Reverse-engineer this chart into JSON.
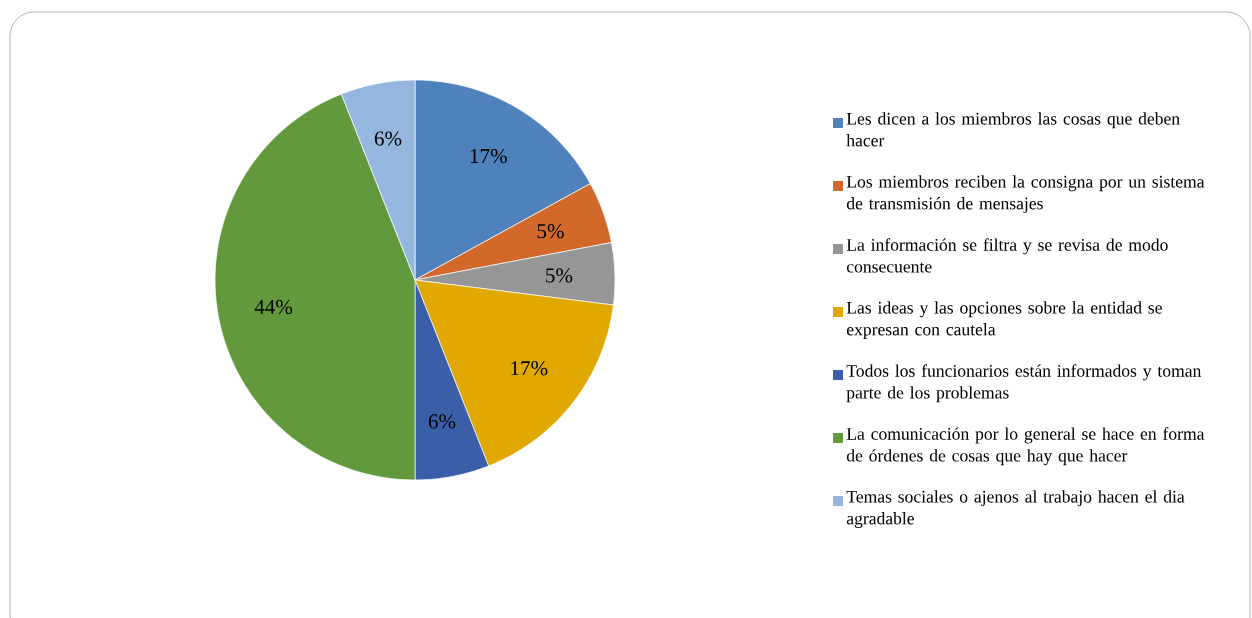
{
  "chart_data": {
    "type": "pie",
    "categories": [
      "Les dicen a los miembros las cosas que deben hacer",
      "Los miembros reciben la consigna por un sistema de transmisión de mensajes",
      "La información se filtra y se revisa de modo consecuente",
      "Las ideas y las opciones sobre la entidad se expresan con cautela",
      "Todos los funcionarios están informados y toman parte de los problemas",
      "La comunicación por lo general se hace en forma de órdenes de cosas que hay que hacer",
      "Temas sociales o ajenos al trabajo hacen el dia agradable"
    ],
    "values": [
      17,
      5,
      5,
      17,
      6,
      44,
      6
    ],
    "value_labels": [
      "17%",
      "5%",
      "5%",
      "17%",
      "6%",
      "44%",
      "6%"
    ],
    "colors": [
      "#4f81bd",
      "#d2692a",
      "#969696",
      "#e0a800",
      "#3a5fa8",
      "#63993d",
      "#95b7df"
    ],
    "legend": "right"
  }
}
